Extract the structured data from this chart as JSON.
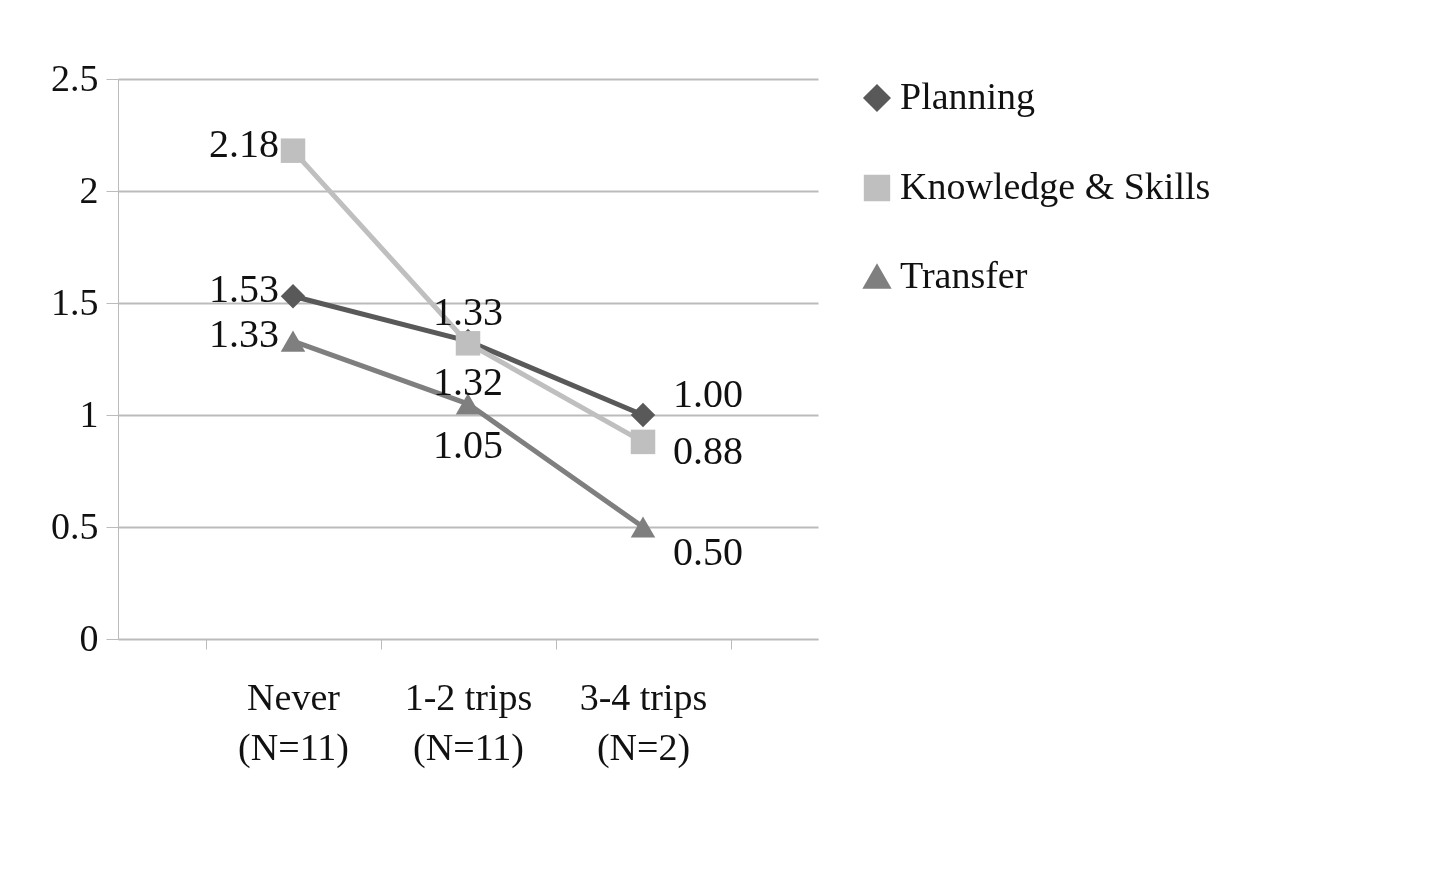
{
  "chart_data": {
    "type": "line",
    "categories": [
      "Never\n(N=11)",
      "1-2 trips\n(N=11)",
      "3-4 trips\n(N=2)"
    ],
    "series": [
      {
        "name": "Planning",
        "color": "#595959",
        "marker": "diamond",
        "values": [
          1.53,
          1.33,
          1.0
        ],
        "value_labels": [
          "1.53",
          "1.33",
          "1.00"
        ]
      },
      {
        "name": "Knowledge & Skills",
        "color": "#bfbfbf",
        "marker": "square",
        "values": [
          2.18,
          1.32,
          0.88
        ],
        "value_labels": [
          "2.18",
          "1.32",
          "0.88"
        ]
      },
      {
        "name": "Transfer",
        "color": "#7f7f7f",
        "marker": "triangle",
        "values": [
          1.33,
          1.05,
          0.5
        ],
        "value_labels": [
          "1.33",
          "1.05",
          "0.50"
        ]
      }
    ],
    "ylim": [
      0,
      2.5
    ],
    "yticks": [
      0,
      0.5,
      1,
      1.5,
      2,
      2.5
    ],
    "grid": "y",
    "legend": "right"
  }
}
